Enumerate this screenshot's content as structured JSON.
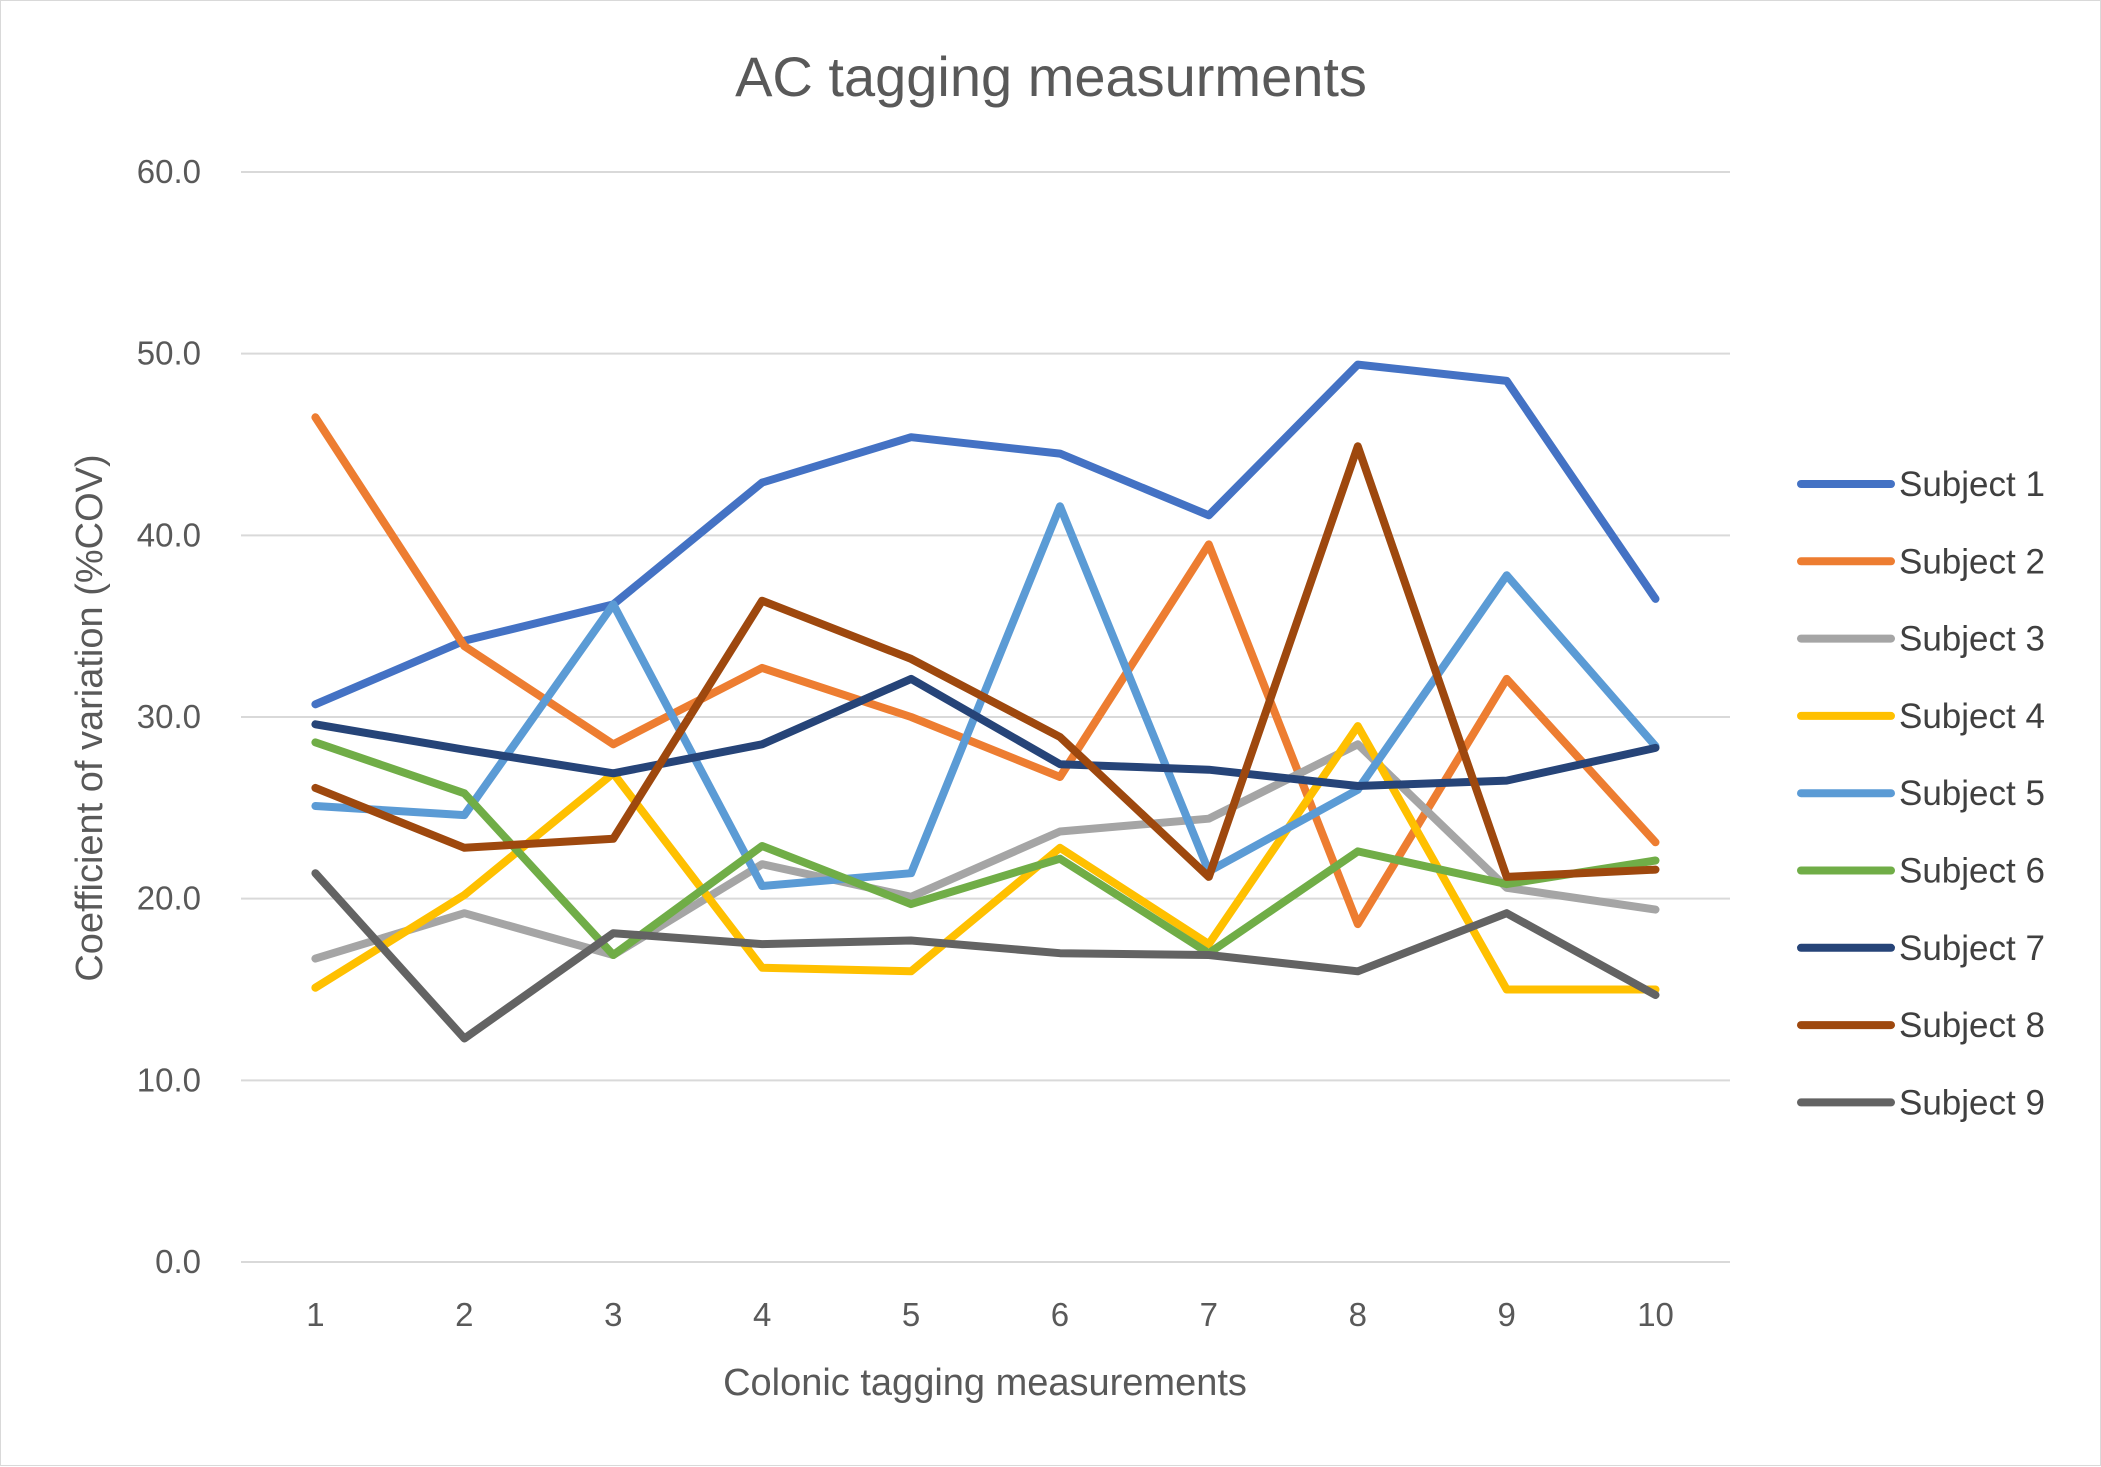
{
  "chart_data": {
    "type": "line",
    "title": "AC tagging measurments",
    "xlabel": "Colonic tagging measurements",
    "ylabel": "Coefficient of variation (%COV)",
    "categories": [
      "1",
      "2",
      "3",
      "4",
      "5",
      "6",
      "7",
      "8",
      "9",
      "10"
    ],
    "ylim": [
      0,
      60
    ],
    "yticks": [
      "0.0",
      "10.0",
      "20.0",
      "30.0",
      "40.0",
      "50.0",
      "60.0"
    ],
    "grid": true,
    "legend_position": "right",
    "series": [
      {
        "name": "Subject 1",
        "color": "#4472C4",
        "values": [
          30.7,
          34.2,
          36.2,
          42.9,
          45.4,
          44.5,
          41.1,
          49.4,
          48.5,
          36.5
        ]
      },
      {
        "name": "Subject 2",
        "color": "#ED7D31",
        "values": [
          46.5,
          33.9,
          28.5,
          32.7,
          30.0,
          26.7,
          39.5,
          18.6,
          32.1,
          23.1
        ]
      },
      {
        "name": "Subject 3",
        "color": "#A5A5A5",
        "values": [
          16.7,
          19.2,
          16.9,
          21.9,
          20.1,
          23.7,
          24.4,
          28.5,
          20.6,
          19.4
        ]
      },
      {
        "name": "Subject 4",
        "color": "#FFC000",
        "values": [
          15.1,
          20.2,
          26.9,
          16.2,
          16.0,
          22.8,
          17.5,
          29.5,
          15.0,
          15.0
        ]
      },
      {
        "name": "Subject 5",
        "color": "#5B9BD5",
        "values": [
          25.1,
          24.6,
          36.2,
          20.7,
          21.4,
          41.6,
          21.5,
          26.0,
          37.8,
          28.4
        ]
      },
      {
        "name": "Subject 6",
        "color": "#70AD47",
        "values": [
          28.6,
          25.8,
          16.9,
          22.9,
          19.7,
          22.2,
          17.0,
          22.6,
          20.8,
          22.1
        ]
      },
      {
        "name": "Subject 7",
        "color": "#264478",
        "values": [
          29.6,
          28.2,
          26.9,
          28.5,
          32.1,
          27.4,
          27.1,
          26.2,
          26.5,
          28.3
        ]
      },
      {
        "name": "Subject 8",
        "color": "#9E480E",
        "values": [
          26.1,
          22.8,
          23.3,
          36.4,
          33.2,
          28.9,
          21.2,
          44.9,
          21.2,
          21.6
        ]
      },
      {
        "name": "Subject 9",
        "color": "#636363",
        "values": [
          21.4,
          12.3,
          18.1,
          17.5,
          17.7,
          17.0,
          16.9,
          16.0,
          19.2,
          14.7
        ]
      }
    ]
  }
}
